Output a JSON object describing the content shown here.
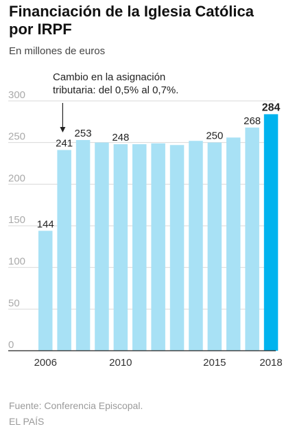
{
  "header": {
    "title": "Financiación de la Iglesia Católica por IRPF",
    "subtitle": "En millones de euros"
  },
  "footer": {
    "source": "Fuente: Conferencia Episcopal.",
    "brand": "EL PAÍS"
  },
  "colors": {
    "bar": "#a8e1f5",
    "bar_highlight": "#00b3ee",
    "grid": "#d9d9d9",
    "axis": "#222222",
    "tick_label": "#aaaaaa"
  },
  "chart_data": {
    "type": "bar",
    "categories": [
      "2006",
      "2007",
      "2008",
      "2009",
      "2010",
      "2011",
      "2012",
      "2013",
      "2014",
      "2015",
      "2016",
      "2017",
      "2018"
    ],
    "values": [
      144,
      241,
      253,
      250,
      248,
      248,
      249,
      247,
      252,
      250,
      256,
      268,
      284
    ],
    "x_tick_labels": [
      {
        "category": "2006",
        "label": "2006"
      },
      {
        "category": "2010",
        "label": "2010"
      },
      {
        "category": "2015",
        "label": "2015"
      },
      {
        "category": "2018",
        "label": "2018"
      }
    ],
    "y_ticks": [
      0,
      50,
      100,
      150,
      200,
      250,
      300
    ],
    "ylim": [
      0,
      300
    ],
    "grid": true,
    "data_labels": [
      {
        "category": "2006",
        "text": "144",
        "bold": false
      },
      {
        "category": "2007",
        "text": "241",
        "bold": false
      },
      {
        "category": "2008",
        "text": "253",
        "bold": false
      },
      {
        "category": "2010",
        "text": "248",
        "bold": false
      },
      {
        "category": "2015",
        "text": "250",
        "bold": false
      },
      {
        "category": "2017",
        "text": "268",
        "bold": false
      },
      {
        "category": "2018",
        "text": "284",
        "bold": true
      }
    ],
    "highlight_category": "2018",
    "annotation": {
      "category": "2007",
      "lines": [
        "Cambio en la asignación",
        "tributaria: del 0,5% al 0,7%."
      ]
    },
    "title": "Financiación de la Iglesia Católica por IRPF",
    "xlabel": "",
    "ylabel": ""
  }
}
